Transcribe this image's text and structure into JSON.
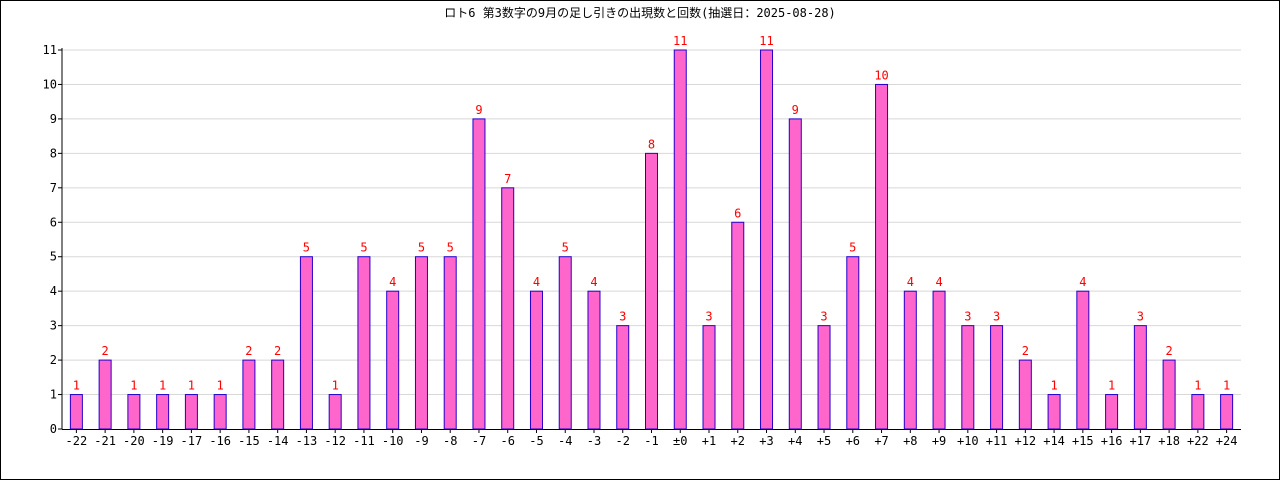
{
  "chart_data": {
    "type": "bar",
    "title": "ロト6 第3数字の9月の足し引きの出現数と回数(抽選日：2025-08-28)",
    "xlabel": "",
    "ylabel": "",
    "ylim": [
      0,
      11
    ],
    "yticks": [
      "0",
      "1",
      "2",
      "3",
      "4",
      "5",
      "6",
      "7",
      "8",
      "9",
      "10",
      "11"
    ],
    "grid": true,
    "legend": "none",
    "categories": [
      "-22",
      "-21",
      "-20",
      "-19",
      "-17",
      "-16",
      "-15",
      "-14",
      "-13",
      "-12",
      "-11",
      "-10",
      "-9",
      "-8",
      "-7",
      "-6",
      "-5",
      "-4",
      "-3",
      "-2",
      "-1",
      "±0",
      "+1",
      "+2",
      "+3",
      "+4",
      "+5",
      "+6",
      "+7",
      "+8",
      "+9",
      "+10",
      "+11",
      "+12",
      "+14",
      "+15",
      "+16",
      "+17",
      "+18",
      "+22",
      "+24"
    ],
    "values": [
      1,
      2,
      1,
      1,
      1,
      1,
      2,
      2,
      5,
      1,
      5,
      4,
      5,
      5,
      9,
      7,
      4,
      5,
      4,
      3,
      8,
      11,
      3,
      6,
      11,
      9,
      3,
      5,
      10,
      4,
      4,
      3,
      3,
      2,
      1,
      4,
      1,
      3,
      2,
      1,
      1
    ],
    "colors": {
      "bar_fill": "#ff66cc",
      "bar_stroke": "#2200cc",
      "value_label": "#ff0000",
      "grid": "#d8d8d8",
      "axis": "#000000"
    }
  }
}
